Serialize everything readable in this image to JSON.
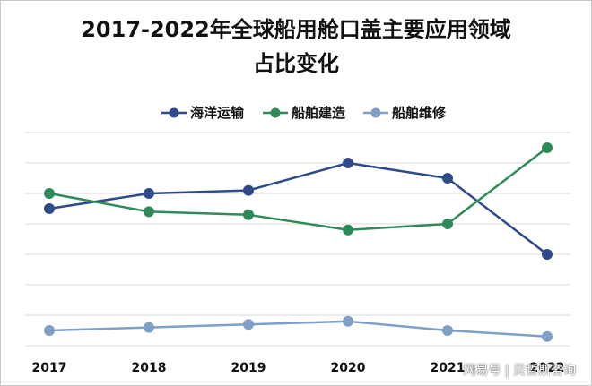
{
  "title_lines": [
    "2017-2022年全球船用舱口盖主要应用领域",
    "占比变化"
  ],
  "watermark": "网易号 | 贝哲斯咨询",
  "chart_data": {
    "type": "line",
    "title": "2017-2022年全球船用舱口盖主要应用领域占比变化",
    "categories": [
      "2017",
      "2018",
      "2019",
      "2020",
      "2021",
      "2022"
    ],
    "ylim": [
      0,
      70
    ],
    "grid": true,
    "legend_position": "top",
    "series": [
      {
        "name": "海洋运输",
        "color": "#2e4a8a",
        "values": [
          45,
          50,
          51,
          60,
          55,
          30
        ]
      },
      {
        "name": "船舶建造",
        "color": "#2e8b57",
        "values": [
          50,
          44,
          43,
          38,
          40,
          65
        ]
      },
      {
        "name": "船舶维修",
        "color": "#7f9fc6",
        "values": [
          5,
          6,
          7,
          8,
          5,
          3
        ]
      }
    ]
  }
}
